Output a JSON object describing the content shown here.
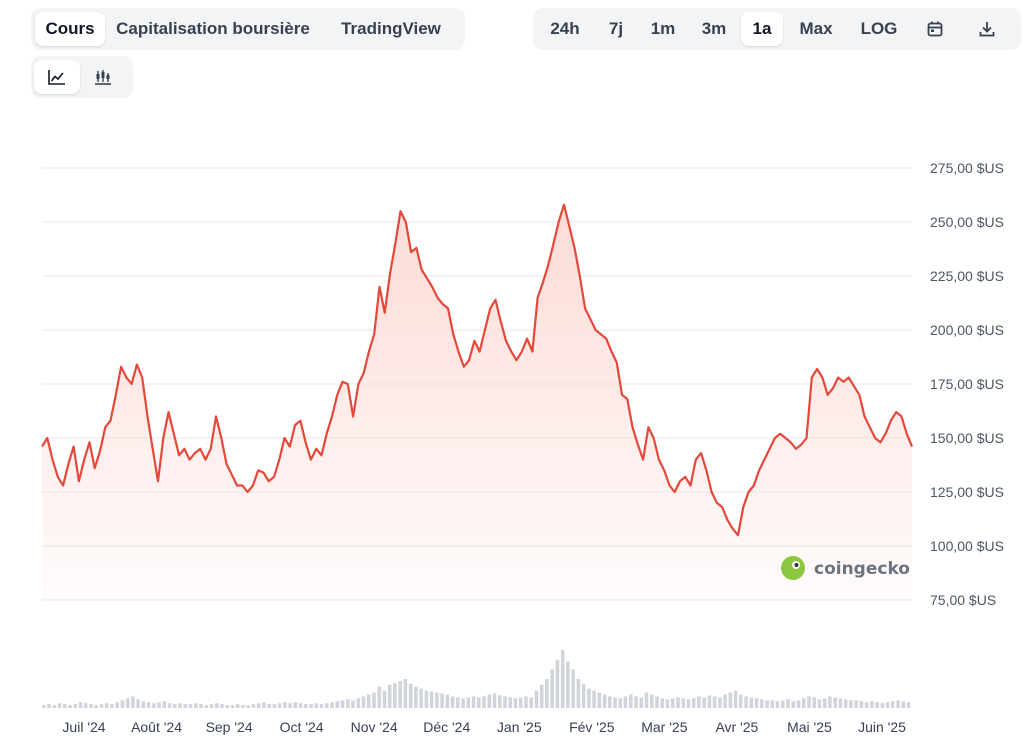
{
  "tabs": [
    {
      "label": "Cours",
      "active": true
    },
    {
      "label": "Capitalisation boursière",
      "active": false
    },
    {
      "label": "TradingView",
      "active": false
    }
  ],
  "ranges": [
    {
      "label": "24h",
      "active": false
    },
    {
      "label": "7j",
      "active": false
    },
    {
      "label": "1m",
      "active": false
    },
    {
      "label": "3m",
      "active": false
    },
    {
      "label": "1a",
      "active": true
    },
    {
      "label": "Max",
      "active": false
    },
    {
      "label": "LOG",
      "active": false
    }
  ],
  "icons": {
    "calendar": "calendar-icon",
    "download": "download-icon",
    "line_chart": "line-chart-icon",
    "candlestick": "candlestick-icon"
  },
  "brand": {
    "label": "coingecko"
  },
  "colors": {
    "line": "#e5483a",
    "fill": "#fcd9d4",
    "volume": "#d1d5db"
  },
  "chart_data": {
    "type": "area",
    "x_tick_labels": [
      "Juil '24",
      "Août '24",
      "Sep '24",
      "Oct '24",
      "Nov '24",
      "Déc '24",
      "Jan '25",
      "Fév '25",
      "Mar '25",
      "Avr '25",
      "Mai '25",
      "Juin '25"
    ],
    "y_tick_labels": [
      "275,00 $US",
      "250,00 $US",
      "225,00 $US",
      "200,00 $US",
      "175,00 $US",
      "150,00 $US",
      "125,00 $US",
      "100,00 $US",
      "75,00 $US"
    ],
    "y_ticks": [
      275,
      250,
      225,
      200,
      175,
      150,
      125,
      100,
      75
    ],
    "ylim": [
      75,
      275
    ],
    "grid": true,
    "series": [
      {
        "values": [
          146,
          150,
          140,
          132,
          128,
          138,
          146,
          130,
          140,
          148,
          136,
          144,
          155,
          158,
          170,
          183,
          178,
          175,
          184,
          178,
          160,
          145,
          130,
          150,
          162,
          152,
          142,
          145,
          140,
          143,
          145,
          140,
          145,
          160,
          150,
          138,
          133,
          128,
          128,
          125,
          128,
          135,
          134,
          130,
          132,
          140,
          150,
          146,
          156,
          158,
          148,
          140,
          145,
          142,
          152,
          160,
          170,
          176,
          175,
          160,
          175,
          180,
          190,
          198,
          220,
          208,
          226,
          240,
          255,
          250,
          236,
          238,
          228,
          224,
          220,
          215,
          212,
          210,
          198,
          190,
          183,
          186,
          195,
          190,
          200,
          210,
          214,
          204,
          195,
          190,
          186,
          190,
          196,
          190,
          215,
          222,
          230,
          240,
          250,
          258,
          248,
          238,
          225,
          210,
          205,
          200,
          198,
          196,
          190,
          185,
          170,
          168,
          155,
          147,
          140,
          155,
          150,
          140,
          135,
          128,
          125,
          130,
          132,
          128,
          140,
          143,
          135,
          125,
          120,
          118,
          112,
          108,
          105,
          118,
          125,
          128,
          135,
          140,
          145,
          150,
          152,
          150,
          148,
          145,
          147,
          150,
          178,
          182,
          178,
          170,
          173,
          178,
          176,
          178,
          174,
          170,
          160,
          155,
          150,
          148,
          152,
          158,
          162,
          160,
          152,
          146
        ]
      }
    ],
    "volume": [
      3,
      4,
      3,
      5,
      4,
      3,
      4,
      6,
      5,
      4,
      3,
      4,
      5,
      4,
      6,
      8,
      10,
      12,
      9,
      7,
      6,
      5,
      6,
      7,
      5,
      4,
      5,
      4,
      4,
      5,
      4,
      3,
      4,
      5,
      4,
      3,
      3,
      4,
      3,
      3,
      4,
      5,
      6,
      4,
      4,
      5,
      6,
      5,
      6,
      5,
      4,
      4,
      5,
      4,
      5,
      6,
      7,
      8,
      9,
      8,
      10,
      12,
      14,
      16,
      22,
      18,
      24,
      26,
      28,
      30,
      25,
      22,
      20,
      18,
      17,
      16,
      15,
      14,
      12,
      11,
      10,
      11,
      12,
      11,
      12,
      14,
      15,
      13,
      12,
      11,
      10,
      11,
      12,
      11,
      18,
      24,
      30,
      40,
      50,
      60,
      48,
      40,
      30,
      25,
      20,
      18,
      16,
      14,
      12,
      11,
      10,
      12,
      14,
      12,
      11,
      16,
      14,
      12,
      10,
      9,
      10,
      11,
      10,
      9,
      10,
      12,
      11,
      13,
      12,
      11,
      14,
      16,
      18,
      14,
      12,
      11,
      10,
      9,
      8,
      8,
      7,
      8,
      9,
      7,
      8,
      10,
      12,
      11,
      9,
      10,
      12,
      11,
      10,
      9,
      8,
      8,
      7,
      6,
      7,
      6,
      5,
      6,
      7,
      8,
      7,
      6
    ]
  }
}
